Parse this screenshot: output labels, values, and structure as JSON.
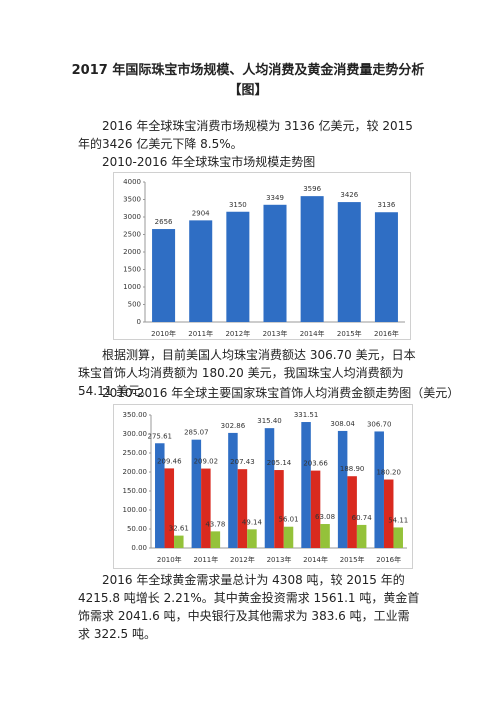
{
  "document": {
    "title": "2017 年国际珠宝市场规模、人均消费及黄金消费量走势分析",
    "title_tag": "【图】",
    "paragraphs": [
      "2016 年全球珠宝消费市场规模为 3136 亿美元，较 2015 年的3426 亿美元下降 8.5%。",
      "根据测算，目前美国人均珠宝消费额达 306.70 美元，日本珠宝首饰人均消费额为 180.20 美元，我国珠宝人均消费额为 54.11 美元。",
      "2016 年全球黄金需求量总计为 4308 吨，较 2015 年的 4215.8 吨增长 2.21%。其中黄金投资需求 1561.1 吨，黄金首饰需求 2041.6 吨，中央银行及其他需求为 383.6 吨，工业需求 322.5 吨。"
    ]
  },
  "chart_data": [
    {
      "type": "bar",
      "title": "2010-2016 年全球珠宝市场规模走势图",
      "categories": [
        "2010年",
        "2011年",
        "2012年",
        "2013年",
        "2014年",
        "2015年",
        "2016年"
      ],
      "series": [
        {
          "color": "#2f6ec4",
          "values": [
            2656,
            2904,
            3150,
            3349,
            3596,
            3426,
            3136
          ]
        }
      ],
      "ylim": [
        0,
        4000
      ],
      "yticks": [
        0,
        500,
        1000,
        1500,
        2000,
        2500,
        3000,
        3500,
        4000
      ],
      "grid": false
    },
    {
      "type": "bar",
      "title": "2010-2016 年全球主要国家珠宝首饰人均消费金额走势图（美元）",
      "categories": [
        "2010年",
        "2011年",
        "2012年",
        "2013年",
        "2014年",
        "2015年",
        "2016年"
      ],
      "series": [
        {
          "color": "#2f6ec4",
          "values": [
            275.61,
            285.07,
            302.86,
            315.4,
            331.51,
            308.04,
            306.7
          ],
          "value_labels": [
            "275.61",
            "285.07",
            "302.86",
            "315.40",
            "331.51",
            "308.04",
            "306.70"
          ]
        },
        {
          "color": "#d92a1f",
          "values": [
            209.46,
            209.02,
            207.43,
            205.14,
            203.66,
            188.9,
            180.2
          ],
          "value_labels": [
            "209.46",
            "209.02",
            "207.43",
            "205.14",
            "203.66",
            "188.90",
            "180.20"
          ]
        },
        {
          "color": "#94c23a",
          "values": [
            32.61,
            43.78,
            49.14,
            56.01,
            63.08,
            60.74,
            54.11
          ],
          "value_labels": [
            "32.61",
            "43.78",
            "49.14",
            "56.01",
            "63.08",
            "60.74",
            "54.11"
          ]
        }
      ],
      "ylim": [
        0,
        350
      ],
      "yticks": [
        {
          "value": 0,
          "label": "0.00"
        },
        {
          "value": 50,
          "label": "50.00"
        },
        {
          "value": 100,
          "label": "100.00"
        },
        {
          "value": 150,
          "label": "150.00"
        },
        {
          "value": 200,
          "label": "200.00"
        },
        {
          "value": 250,
          "label": "250.00"
        },
        {
          "value": 300,
          "label": "300.00"
        },
        {
          "value": 350,
          "label": "350.00"
        }
      ],
      "grid": false
    }
  ]
}
